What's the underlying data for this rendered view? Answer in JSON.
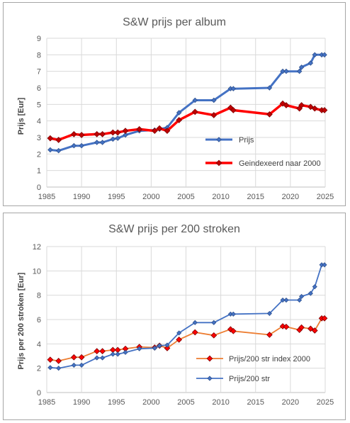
{
  "chart_data": [
    {
      "type": "line",
      "title": "S&W prijs per album",
      "xlabel": "",
      "ylabel": "Prijs [Eur]",
      "xlim": [
        1985,
        2025
      ],
      "ylim": [
        0,
        9
      ],
      "xticks": [
        "1985",
        "1990",
        "1995",
        "2000",
        "2005",
        "2010",
        "2015",
        "2020",
        "2025"
      ],
      "yticks": [
        "0",
        "1",
        "2",
        "3",
        "4",
        "5",
        "6",
        "7",
        "8",
        "9"
      ],
      "grid": true,
      "legend": "bottom-right",
      "series": [
        {
          "name": "Prijs",
          "color": "#4472c4",
          "points": [
            [
              1985.5,
              2.25
            ],
            [
              1986.7,
              2.2
            ],
            [
              1988.9,
              2.5
            ],
            [
              1990,
              2.5
            ],
            [
              1992.2,
              2.7
            ],
            [
              1993,
              2.7
            ],
            [
              1994.5,
              2.9
            ],
            [
              1995.2,
              2.95
            ],
            [
              1996.3,
              3.15
            ],
            [
              1998.3,
              3.4
            ],
            [
              2000.5,
              3.45
            ],
            [
              2001.2,
              3.5
            ],
            [
              2002.3,
              3.6
            ],
            [
              2004,
              4.5
            ],
            [
              2006.3,
              5.25
            ],
            [
              2009,
              5.25
            ],
            [
              2011.4,
              5.95
            ],
            [
              2011.8,
              5.95
            ],
            [
              2017,
              6.0
            ],
            [
              2018.9,
              7.0
            ],
            [
              2019.4,
              7.0
            ],
            [
              2021.3,
              7.0
            ],
            [
              2021.6,
              7.25
            ],
            [
              2022.9,
              7.5
            ],
            [
              2023.5,
              8.0
            ],
            [
              2024.5,
              8.0
            ],
            [
              2024.9,
              8.0
            ]
          ]
        },
        {
          "name": "Geindexeerd naar 2000",
          "color": "#ff0000",
          "markerColor": "#c00000",
          "points": [
            [
              1985.5,
              2.95
            ],
            [
              1986.7,
              2.85
            ],
            [
              1988.9,
              3.2
            ],
            [
              1990,
              3.15
            ],
            [
              1992.2,
              3.2
            ],
            [
              1993,
              3.2
            ],
            [
              1994.5,
              3.3
            ],
            [
              1995.2,
              3.3
            ],
            [
              1996.3,
              3.4
            ],
            [
              1998.3,
              3.5
            ],
            [
              2000.5,
              3.4
            ],
            [
              2001.2,
              3.55
            ],
            [
              2002.3,
              3.4
            ],
            [
              2004,
              4.05
            ],
            [
              2006.3,
              4.55
            ],
            [
              2009,
              4.35
            ],
            [
              2011.4,
              4.8
            ],
            [
              2011.8,
              4.65
            ],
            [
              2017,
              4.4
            ],
            [
              2018.9,
              5.05
            ],
            [
              2019.4,
              4.95
            ],
            [
              2021.3,
              4.75
            ],
            [
              2021.6,
              4.95
            ],
            [
              2022.9,
              4.85
            ],
            [
              2023.5,
              4.75
            ],
            [
              2024.5,
              4.65
            ],
            [
              2024.9,
              4.65
            ]
          ]
        }
      ]
    },
    {
      "type": "line",
      "title": "S&W prijs per 200 stroken",
      "xlabel": "",
      "ylabel": "Prijs per 200 stroken [Eur]",
      "xlim": [
        1985,
        2025
      ],
      "ylim": [
        0,
        12
      ],
      "xticks": [
        "1985",
        "1990",
        "1995",
        "2000",
        "2005",
        "2010",
        "2015",
        "2020",
        "2025"
      ],
      "yticks": [
        "0",
        "2",
        "4",
        "6",
        "8",
        "10",
        "12"
      ],
      "grid": true,
      "legend": "bottom-right",
      "series": [
        {
          "name": "Prijs/200 str index 2000",
          "color": "#ed7d31",
          "markerColor": "#ff0000",
          "points": [
            [
              1985.5,
              2.7
            ],
            [
              1986.7,
              2.6
            ],
            [
              1988.9,
              2.9
            ],
            [
              1990,
              2.9
            ],
            [
              1992.2,
              3.4
            ],
            [
              1993,
              3.4
            ],
            [
              1994.5,
              3.5
            ],
            [
              1995.2,
              3.5
            ],
            [
              1996.3,
              3.6
            ],
            [
              1998.3,
              3.75
            ],
            [
              2000.5,
              3.7
            ],
            [
              2001.2,
              3.85
            ],
            [
              2002.3,
              3.65
            ],
            [
              2004,
              4.35
            ],
            [
              2006.3,
              4.95
            ],
            [
              2009,
              4.7
            ],
            [
              2011.4,
              5.2
            ],
            [
              2011.8,
              5.05
            ],
            [
              2017,
              4.75
            ],
            [
              2018.9,
              5.45
            ],
            [
              2019.4,
              5.4
            ],
            [
              2021.3,
              5.15
            ],
            [
              2021.6,
              5.35
            ],
            [
              2022.9,
              5.25
            ],
            [
              2023.5,
              5.1
            ],
            [
              2024.5,
              6.1
            ],
            [
              2024.9,
              6.1
            ]
          ]
        },
        {
          "name": "Prijs/200 str",
          "color": "#4472c4",
          "points": [
            [
              1985.5,
              2.05
            ],
            [
              1986.7,
              2.0
            ],
            [
              1988.9,
              2.25
            ],
            [
              1990,
              2.25
            ],
            [
              1992.2,
              2.85
            ],
            [
              1993,
              2.85
            ],
            [
              1994.5,
              3.15
            ],
            [
              1995.2,
              3.15
            ],
            [
              1996.3,
              3.3
            ],
            [
              1998.3,
              3.6
            ],
            [
              2000.5,
              3.65
            ],
            [
              2001.2,
              3.85
            ],
            [
              2002.3,
              3.9
            ],
            [
              2004,
              4.9
            ],
            [
              2006.3,
              5.75
            ],
            [
              2009,
              5.75
            ],
            [
              2011.4,
              6.45
            ],
            [
              2011.8,
              6.45
            ],
            [
              2017,
              6.5
            ],
            [
              2018.9,
              7.6
            ],
            [
              2019.4,
              7.6
            ],
            [
              2021.3,
              7.6
            ],
            [
              2021.6,
              7.9
            ],
            [
              2022.9,
              8.15
            ],
            [
              2023.5,
              8.7
            ],
            [
              2024.5,
              10.5
            ],
            [
              2024.9,
              10.5
            ]
          ]
        }
      ]
    }
  ]
}
